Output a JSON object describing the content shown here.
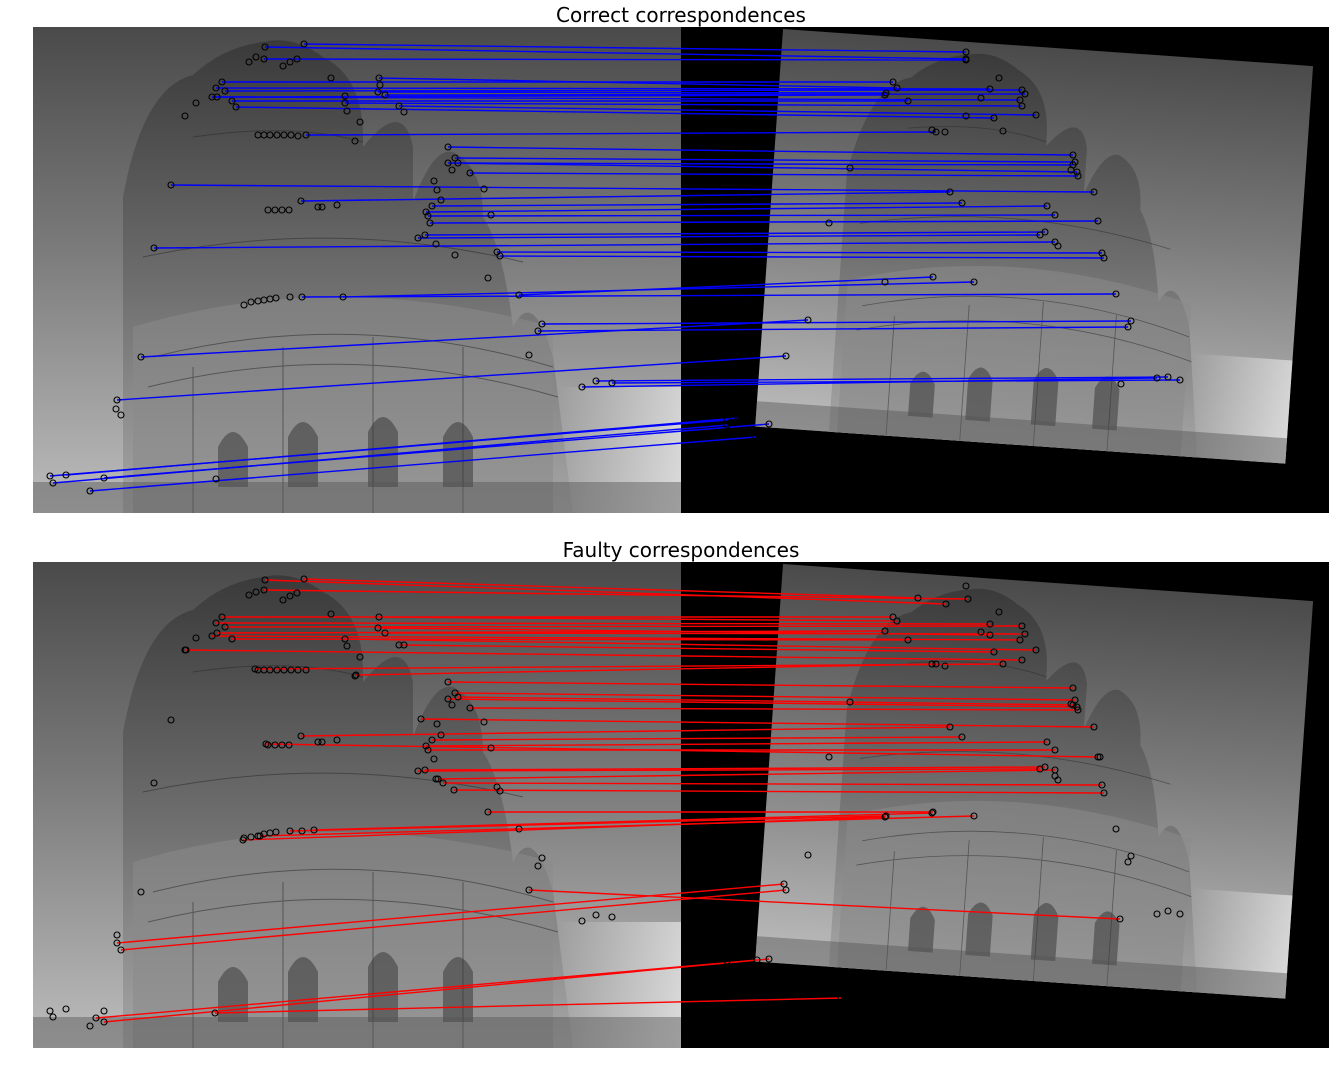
{
  "panels": [
    {
      "title": "Correct correspondences",
      "line_color": "#0000ff"
    },
    {
      "title": "Faulty correspondences",
      "line_color": "#ff0000"
    }
  ],
  "colors": {
    "keypoint_ring": "#000000",
    "sky_light": "#e6e6e6",
    "sky_dark": "#3c3c3c",
    "background_black": "#000000"
  },
  "image": {
    "subject": "grayscale photo of ornate temple facade with domes",
    "left": "original view",
    "right": "rotated and scaled copy of the same view"
  }
}
